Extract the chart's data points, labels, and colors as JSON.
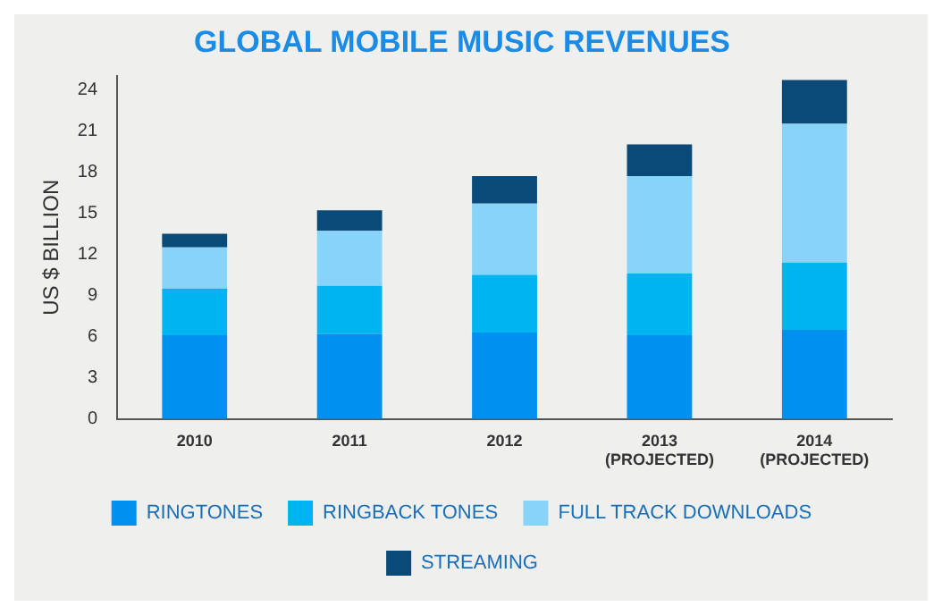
{
  "chart_data": {
    "type": "bar",
    "title": "GLOBAL MOBILE MUSIC REVENUES",
    "ylabel": "US $ BILLION",
    "stacked": true,
    "categories": [
      "2010",
      "2011",
      "2012",
      "2013\n(PROJECTED)",
      "2014\n(PROJECTED)"
    ],
    "series": [
      {
        "name": "RINGTONES",
        "color": "#0091f0",
        "values": [
          6.1,
          6.2,
          6.3,
          6.1,
          6.5
        ]
      },
      {
        "name": "RINGBACK TONES",
        "color": "#00b4f0",
        "values": [
          3.4,
          3.5,
          4.2,
          4.5,
          4.9
        ]
      },
      {
        "name": "FULL TRACK DOWNLOADS",
        "color": "#88d4f8",
        "values": [
          3.0,
          4.0,
          5.2,
          7.1,
          10.1
        ]
      },
      {
        "name": "STREAMING",
        "color": "#0a4a78",
        "values": [
          1.0,
          1.5,
          2.0,
          2.3,
          3.2
        ]
      }
    ],
    "ylim": [
      0,
      25
    ],
    "yticks": [
      0,
      3,
      6,
      9,
      12,
      15,
      18,
      21,
      24
    ],
    "grid": false,
    "legend": "bottom"
  }
}
